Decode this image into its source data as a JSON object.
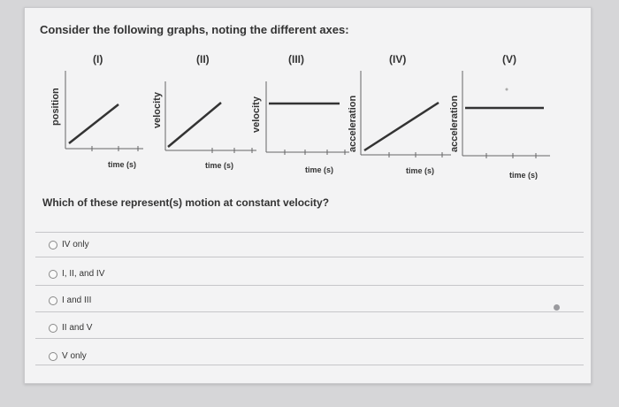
{
  "prompt": "Consider the following graphs, noting the different axes:",
  "graphs": [
    {
      "numeral": "(I)",
      "y_label": "position",
      "x_label": "time (s)",
      "shape": "rising-line"
    },
    {
      "numeral": "(II)",
      "y_label": "velocity",
      "x_label": "time (s)",
      "shape": "rising-line"
    },
    {
      "numeral": "(III)",
      "y_label": "velocity",
      "x_label": "time (s)",
      "shape": "horizontal-line"
    },
    {
      "numeral": "(IV)",
      "y_label": "acceleration",
      "x_label": "time (s)",
      "shape": "rising-line"
    },
    {
      "numeral": "(V)",
      "y_label": "acceleration",
      "x_label": "time (s)",
      "shape": "horizontal-line"
    }
  ],
  "question": "Which of these represent(s) motion at constant velocity?",
  "options": [
    {
      "label": "IV only",
      "selected": false
    },
    {
      "label": "I, II, and IV",
      "selected": false
    },
    {
      "label": "I and III",
      "selected": false
    },
    {
      "label": "II and V",
      "selected": false
    },
    {
      "label": "V only",
      "selected": false
    }
  ]
}
